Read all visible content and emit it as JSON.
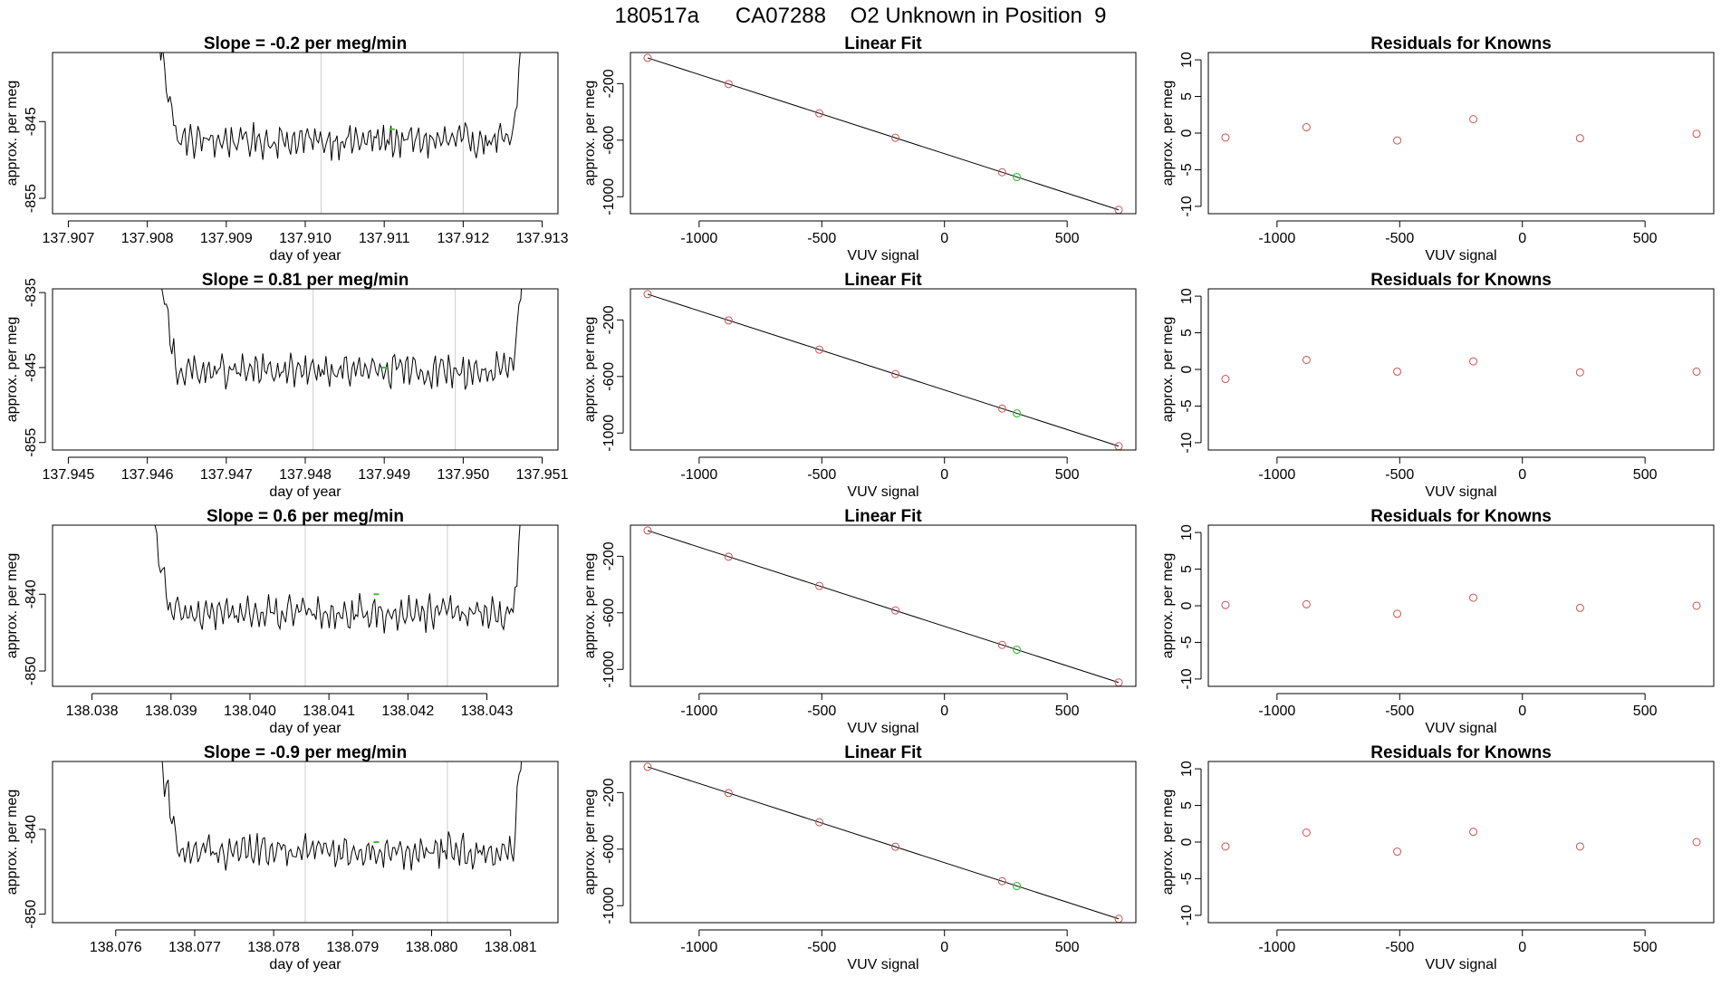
{
  "page": {
    "title": "180517a      CA07288    O2 Unknown in Position  9"
  },
  "chart_data": [
    {
      "type": "line",
      "panel": "time-series",
      "row": 1,
      "title": "Slope =  -0.2  per meg/min",
      "xlabel": "day of year",
      "ylabel": "approx. per meg",
      "xlim": [
        137.9068,
        137.9132
      ],
      "ylim": [
        -857,
        -836
      ],
      "xticks": [
        137.907,
        137.908,
        137.909,
        137.91,
        137.911,
        137.912,
        137.913
      ],
      "xtick_labels": [
        "137.907",
        "137.908",
        "137.909",
        "137.910",
        "137.911",
        "137.912",
        "137.913"
      ],
      "yticks": [
        -845,
        -855
      ],
      "ytick_labels": [
        "-845",
        "-855"
      ],
      "x_start": 137.9081,
      "x_end": 137.9128,
      "baseline": -847.5,
      "vlines": [
        137.9102,
        137.912
      ],
      "highlight": {
        "x": 137.9111,
        "y": -846.0
      }
    },
    {
      "type": "scatter",
      "panel": "linear-fit",
      "row": 1,
      "title": "Linear Fit",
      "xlabel": "VUV signal",
      "ylabel": "approx. per meg",
      "xlim": [
        -1280,
        780
      ],
      "ylim": [
        -1120,
        20
      ],
      "xticks": [
        -1000,
        -500,
        0,
        500
      ],
      "xtick_labels": [
        "-1000",
        "-500",
        "0",
        "500"
      ],
      "yticks": [
        -200,
        -600,
        -1000
      ],
      "ytick_labels": [
        "-200",
        "-600",
        "-1000"
      ],
      "line": {
        "x0": -1210,
        "y0": -18,
        "x1": 710,
        "y1": -1093
      },
      "points": [
        {
          "x": -1210,
          "y": -18
        },
        {
          "x": -880,
          "y": -203
        },
        {
          "x": -510,
          "y": -410
        },
        {
          "x": -200,
          "y": -583
        },
        {
          "x": 235,
          "y": -827
        },
        {
          "x": 710,
          "y": -1093
        }
      ],
      "unknown": {
        "x": 295,
        "y": -861
      }
    },
    {
      "type": "scatter",
      "panel": "residuals",
      "row": 1,
      "title": "Residuals for Knowns",
      "xlabel": "VUV signal",
      "ylabel": "approx. per meg",
      "xlim": [
        -1280,
        780
      ],
      "ylim": [
        -11,
        11
      ],
      "xticks": [
        -1000,
        -500,
        0,
        500
      ],
      "xtick_labels": [
        "-1000",
        "-500",
        "0",
        "500"
      ],
      "yticks": [
        10,
        5,
        0,
        -5,
        -10
      ],
      "ytick_labels": [
        "10",
        "5",
        "0",
        "-5",
        "-10"
      ],
      "points": [
        {
          "x": -1210,
          "y": -0.6
        },
        {
          "x": -880,
          "y": 0.8
        },
        {
          "x": -510,
          "y": -1.0
        },
        {
          "x": -200,
          "y": 1.9
        },
        {
          "x": 235,
          "y": -0.7
        },
        {
          "x": 710,
          "y": -0.1
        }
      ]
    },
    {
      "type": "line",
      "panel": "time-series",
      "row": 2,
      "title": "Slope =  0.81  per meg/min",
      "xlabel": "day of year",
      "ylabel": "approx. per meg",
      "xlim": [
        137.9448,
        137.9512
      ],
      "ylim": [
        -856,
        -834.5
      ],
      "xticks": [
        137.945,
        137.946,
        137.947,
        137.948,
        137.949,
        137.95,
        137.951
      ],
      "xtick_labels": [
        "137.945",
        "137.946",
        "137.947",
        "137.948",
        "137.949",
        "137.950",
        "137.951"
      ],
      "yticks": [
        -835,
        -845,
        -855
      ],
      "ytick_labels": [
        "-835",
        "-845",
        "-855"
      ],
      "x_start": 137.9461,
      "x_end": 137.9508,
      "baseline": -845.5,
      "vlines": [
        137.9481,
        137.9499
      ],
      "highlight": {
        "x": 137.949,
        "y": -845.0
      }
    },
    {
      "type": "scatter",
      "panel": "linear-fit",
      "row": 2,
      "title": "Linear Fit",
      "xlabel": "VUV signal",
      "ylabel": "approx. per meg",
      "xlim": [
        -1280,
        780
      ],
      "ylim": [
        -1120,
        20
      ],
      "xticks": [
        -1000,
        -500,
        0,
        500
      ],
      "xtick_labels": [
        "-1000",
        "-500",
        "0",
        "500"
      ],
      "yticks": [
        -200,
        -600,
        -1000
      ],
      "ytick_labels": [
        "-200",
        "-600",
        "-1000"
      ],
      "line": {
        "x0": -1210,
        "y0": -18,
        "x1": 710,
        "y1": -1093
      },
      "points": [
        {
          "x": -1210,
          "y": -18
        },
        {
          "x": -880,
          "y": -203
        },
        {
          "x": -510,
          "y": -410
        },
        {
          "x": -200,
          "y": -583
        },
        {
          "x": 235,
          "y": -827
        },
        {
          "x": 710,
          "y": -1093
        }
      ],
      "unknown": {
        "x": 295,
        "y": -861
      }
    },
    {
      "type": "scatter",
      "panel": "residuals",
      "row": 2,
      "title": "Residuals for Knowns",
      "xlabel": "VUV signal",
      "ylabel": "approx. per meg",
      "xlim": [
        -1280,
        780
      ],
      "ylim": [
        -11,
        11
      ],
      "xticks": [
        -1000,
        -500,
        0,
        500
      ],
      "xtick_labels": [
        "-1000",
        "-500",
        "0",
        "500"
      ],
      "yticks": [
        10,
        5,
        0,
        -5,
        -10
      ],
      "ytick_labels": [
        "10",
        "5",
        "0",
        "-5",
        "-10"
      ],
      "points": [
        {
          "x": -1210,
          "y": -1.3
        },
        {
          "x": -880,
          "y": 1.3
        },
        {
          "x": -510,
          "y": -0.3
        },
        {
          "x": -200,
          "y": 1.1
        },
        {
          "x": 235,
          "y": -0.4
        },
        {
          "x": 710,
          "y": -0.3
        }
      ]
    },
    {
      "type": "line",
      "panel": "time-series",
      "row": 3,
      "title": "Slope =  0.6  per meg/min",
      "xlabel": "day of year",
      "ylabel": "approx. per meg",
      "xlim": [
        138.0375,
        138.0439
      ],
      "ylim": [
        -852,
        -831
      ],
      "xticks": [
        138.038,
        138.039,
        138.04,
        138.041,
        138.042,
        138.043
      ],
      "xtick_labels": [
        "138.038",
        "138.039",
        "138.040",
        "138.041",
        "138.042",
        "138.043"
      ],
      "yticks": [
        -840,
        -850
      ],
      "ytick_labels": [
        "-840",
        "-850"
      ],
      "x_start": 138.0387,
      "x_end": 138.0435,
      "baseline": -842.5,
      "vlines": [
        138.0407,
        138.0425
      ],
      "highlight": {
        "x": 138.0416,
        "y": -840.0
      }
    },
    {
      "type": "scatter",
      "panel": "linear-fit",
      "row": 3,
      "title": "Linear Fit",
      "xlabel": "VUV signal",
      "ylabel": "approx. per meg",
      "xlim": [
        -1280,
        780
      ],
      "ylim": [
        -1120,
        20
      ],
      "xticks": [
        -1000,
        -500,
        0,
        500
      ],
      "xtick_labels": [
        "-1000",
        "-500",
        "0",
        "500"
      ],
      "yticks": [
        -200,
        -600,
        -1000
      ],
      "ytick_labels": [
        "-200",
        "-600",
        "-1000"
      ],
      "line": {
        "x0": -1210,
        "y0": -18,
        "x1": 710,
        "y1": -1093
      },
      "points": [
        {
          "x": -1210,
          "y": -18
        },
        {
          "x": -880,
          "y": -203
        },
        {
          "x": -510,
          "y": -410
        },
        {
          "x": -200,
          "y": -583
        },
        {
          "x": 235,
          "y": -827
        },
        {
          "x": 710,
          "y": -1093
        }
      ],
      "unknown": {
        "x": 295,
        "y": -861
      }
    },
    {
      "type": "scatter",
      "panel": "residuals",
      "row": 3,
      "title": "Residuals for Knowns",
      "xlabel": "VUV signal",
      "ylabel": "approx. per meg",
      "xlim": [
        -1280,
        780
      ],
      "ylim": [
        -11,
        11
      ],
      "xticks": [
        -1000,
        -500,
        0,
        500
      ],
      "xtick_labels": [
        "-1000",
        "-500",
        "0",
        "500"
      ],
      "yticks": [
        10,
        5,
        0,
        -5,
        -10
      ],
      "ytick_labels": [
        "10",
        "5",
        "0",
        "-5",
        "-10"
      ],
      "points": [
        {
          "x": -1210,
          "y": 0.1
        },
        {
          "x": -880,
          "y": 0.2
        },
        {
          "x": -510,
          "y": -1.1
        },
        {
          "x": -200,
          "y": 1.1
        },
        {
          "x": 235,
          "y": -0.3
        },
        {
          "x": 710,
          "y": 0.0
        }
      ]
    },
    {
      "type": "line",
      "panel": "time-series",
      "row": 4,
      "title": "Slope =  -0.9  per meg/min",
      "xlabel": "day of year",
      "ylabel": "approx. per meg",
      "xlim": [
        138.0752,
        138.0816
      ],
      "ylim": [
        -851,
        -832
      ],
      "xticks": [
        138.076,
        138.077,
        138.078,
        138.079,
        138.08,
        138.081
      ],
      "xtick_labels": [
        "138.076",
        "138.077",
        "138.078",
        "138.079",
        "138.080",
        "138.081"
      ],
      "yticks": [
        -840,
        -850
      ],
      "ytick_labels": [
        "-840",
        "-850"
      ],
      "x_start": 138.0765,
      "x_end": 138.0812,
      "baseline": -842.5,
      "vlines": [
        138.0784,
        138.0802
      ],
      "highlight": {
        "x": 138.0793,
        "y": -841.5
      }
    },
    {
      "type": "scatter",
      "panel": "linear-fit",
      "row": 4,
      "title": "Linear Fit",
      "xlabel": "VUV signal",
      "ylabel": "approx. per meg",
      "xlim": [
        -1280,
        780
      ],
      "ylim": [
        -1120,
        20
      ],
      "xticks": [
        -1000,
        -500,
        0,
        500
      ],
      "xtick_labels": [
        "-1000",
        "-500",
        "0",
        "500"
      ],
      "yticks": [
        -200,
        -600,
        -1000
      ],
      "ytick_labels": [
        "-200",
        "-600",
        "-1000"
      ],
      "line": {
        "x0": -1210,
        "y0": -18,
        "x1": 710,
        "y1": -1093
      },
      "points": [
        {
          "x": -1210,
          "y": -18
        },
        {
          "x": -880,
          "y": -203
        },
        {
          "x": -510,
          "y": -410
        },
        {
          "x": -200,
          "y": -583
        },
        {
          "x": 235,
          "y": -827
        },
        {
          "x": 710,
          "y": -1093
        }
      ],
      "unknown": {
        "x": 295,
        "y": -861
      }
    },
    {
      "type": "scatter",
      "panel": "residuals",
      "row": 4,
      "title": "Residuals for Knowns",
      "xlabel": "VUV signal",
      "ylabel": "approx. per meg",
      "xlim": [
        -1280,
        780
      ],
      "ylim": [
        -11,
        11
      ],
      "xticks": [
        -1000,
        -500,
        0,
        500
      ],
      "xtick_labels": [
        "-1000",
        "-500",
        "0",
        "500"
      ],
      "yticks": [
        10,
        5,
        0,
        -5,
        -10
      ],
      "ytick_labels": [
        "10",
        "5",
        "0",
        "-5",
        "-10"
      ],
      "points": [
        {
          "x": -1210,
          "y": -0.6
        },
        {
          "x": -880,
          "y": 1.3
        },
        {
          "x": -510,
          "y": -1.3
        },
        {
          "x": -200,
          "y": 1.4
        },
        {
          "x": 235,
          "y": -0.6
        },
        {
          "x": 710,
          "y": 0.0
        }
      ]
    }
  ],
  "colors": {
    "axis": "#000000",
    "series": "#000000",
    "vline": "#cccccc",
    "known_point": "#d05050",
    "unknown_point": "#3ac43a"
  }
}
